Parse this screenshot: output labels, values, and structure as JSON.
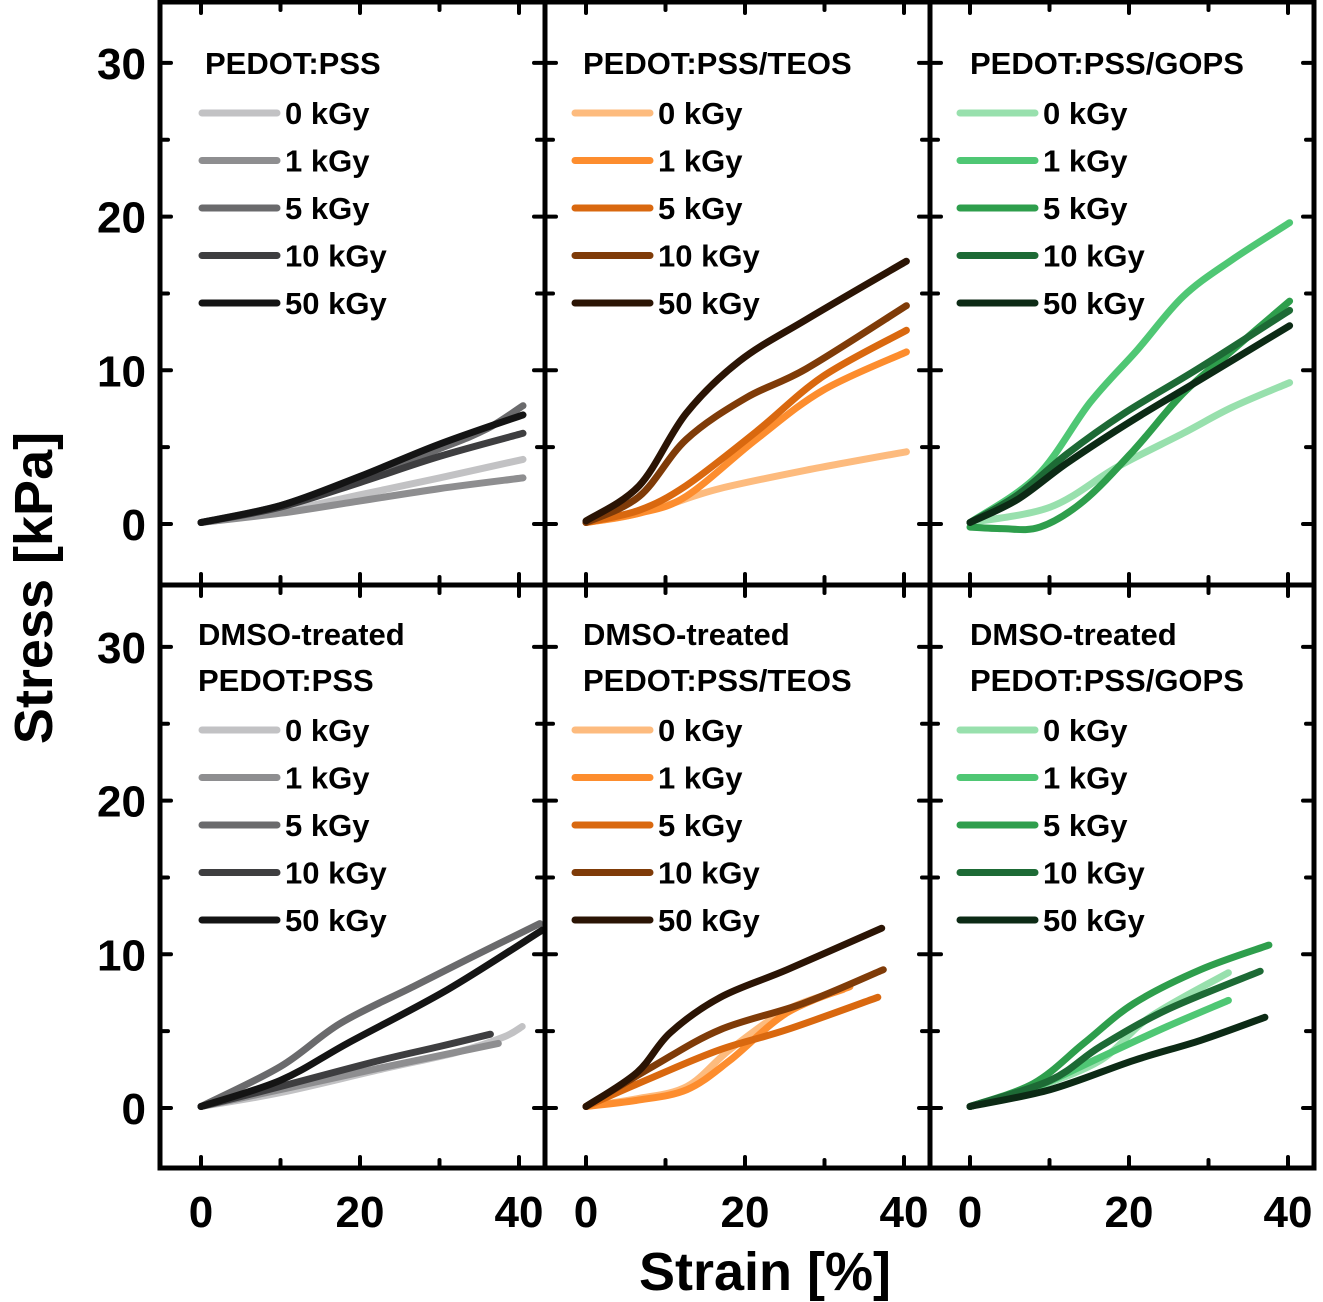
{
  "chart_data": {
    "type": "line",
    "layout": "2x3 grid of panels sharing axes",
    "xlabel": "Strain [%]",
    "ylabel": "Stress [kPa]",
    "xlim": [
      -5,
      42
    ],
    "ylim": [
      -4,
      34
    ],
    "x_ticks": [
      0,
      20,
      40
    ],
    "x_minor_ticks": [
      10,
      30
    ],
    "y_ticks": [
      0,
      10,
      20,
      30
    ],
    "y_minor_ticks": [
      5,
      15,
      25
    ],
    "x_tick_labels": [
      "0",
      "20",
      "40"
    ],
    "y_tick_labels": [
      "0",
      "10",
      "20",
      "30"
    ],
    "grid": false,
    "legend_placement": "top-left",
    "panels": [
      {
        "row": 0,
        "col": 0,
        "title_lines": [
          "PEDOT:PSS"
        ],
        "series": [
          {
            "name": "0 kGy",
            "color": "#c2c2c4",
            "x": [
              0,
              10,
              20,
              30,
              40.5
            ],
            "y": [
              0.1,
              0.8,
              1.9,
              3.0,
              4.2
            ]
          },
          {
            "name": "1 kGy",
            "color": "#8e8e90",
            "x": [
              0,
              10,
              20,
              30,
              40.5
            ],
            "y": [
              0.1,
              0.7,
              1.5,
              2.3,
              3.0
            ]
          },
          {
            "name": "5 kGy",
            "color": "#6a6a6c",
            "x": [
              0,
              10,
              20,
              30,
              36,
              40.5
            ],
            "y": [
              0.1,
              1.2,
              3.0,
              4.9,
              6.2,
              7.7
            ]
          },
          {
            "name": "10 kGy",
            "color": "#3e3e40",
            "x": [
              0,
              10,
              20,
              30,
              40.5
            ],
            "y": [
              0.1,
              1.1,
              2.7,
              4.4,
              5.9
            ]
          },
          {
            "name": "50 kGy",
            "color": "#141414",
            "x": [
              0,
              10,
              20,
              30,
              40.5
            ],
            "y": [
              0.1,
              1.2,
              3.1,
              5.2,
              7.1
            ]
          }
        ]
      },
      {
        "row": 0,
        "col": 1,
        "title_lines": [
          "PEDOT:PSS/TEOS"
        ],
        "series": [
          {
            "name": "0 kGy",
            "color": "#fdbb7e",
            "x": [
              0,
              5,
              10,
              16.8,
              27.7,
              40.3
            ],
            "y": [
              0.1,
              0.5,
              1.2,
              2.3,
              3.5,
              4.7
            ]
          },
          {
            "name": "1 kGy",
            "color": "#fd8d2e",
            "x": [
              0,
              6.7,
              12.6,
              21.4,
              29.8,
              40.3
            ],
            "y": [
              0.1,
              0.7,
              1.8,
              5.5,
              8.7,
              11.2
            ]
          },
          {
            "name": "5 kGy",
            "color": "#d9680f",
            "x": [
              0,
              6.7,
              12.6,
              21.4,
              29.8,
              40.3
            ],
            "y": [
              0.1,
              0.9,
              2.5,
              6.0,
              9.6,
              12.6
            ]
          },
          {
            "name": "10 kGy",
            "color": "#7f3b08",
            "x": [
              0,
              6.7,
              12.6,
              20.1,
              27.7,
              40.3
            ],
            "y": [
              0.1,
              1.8,
              5.5,
              8.2,
              10.1,
              14.2
            ]
          },
          {
            "name": "50 kGy",
            "color": "#2b1404",
            "x": [
              0,
              6.7,
              12.6,
              19.3,
              27.7,
              40.3
            ],
            "y": [
              0.2,
              2.5,
              7.2,
              10.6,
              13.3,
              17.1
            ]
          }
        ]
      },
      {
        "row": 0,
        "col": 2,
        "title_lines": [
          "PEDOT:PSS/GOPS"
        ],
        "series": [
          {
            "name": "0 kGy",
            "color": "#98e0ad",
            "x": [
              0,
              10.1,
              18.5,
              26.8,
              33,
              40.2
            ],
            "y": [
              0.1,
              1.1,
              3.7,
              5.9,
              7.6,
              9.2
            ]
          },
          {
            "name": "1 kGy",
            "color": "#4fc774",
            "x": [
              0,
              8.4,
              15.1,
              21,
              26.8,
              33,
              40.2
            ],
            "y": [
              0.1,
              3.1,
              7.9,
              11.3,
              14.8,
              17.2,
              19.6
            ]
          },
          {
            "name": "5 kGy",
            "color": "#2e9e4c",
            "x": [
              0,
              4,
              8.8,
              14.3,
              20.6,
              26.8,
              33,
              40.2
            ],
            "y": [
              -0.2,
              -0.3,
              -0.2,
              1.5,
              4.8,
              8.5,
              11.3,
              14.5
            ]
          },
          {
            "name": "10 kGy",
            "color": "#1d6a35",
            "x": [
              0,
              6,
              12.3,
              19.4,
              29,
              40.2
            ],
            "y": [
              0.1,
              1.9,
              4.6,
              7.2,
              10.2,
              13.9
            ]
          },
          {
            "name": "50 kGy",
            "color": "#0c2a15",
            "x": [
              0,
              6,
              12.3,
              20.6,
              29,
              40.2
            ],
            "y": [
              0.1,
              1.6,
              4.0,
              6.8,
              9.4,
              12.9
            ]
          }
        ]
      },
      {
        "row": 1,
        "col": 0,
        "title_lines": [
          "DMSO-treated",
          "PEDOT:PSS"
        ],
        "series": [
          {
            "name": "0 kGy",
            "color": "#c2c2c4",
            "x": [
              0,
              10,
              22.5,
              32,
              38,
              40.4
            ],
            "y": [
              0.1,
              1.0,
              2.5,
              3.6,
              4.6,
              5.3
            ]
          },
          {
            "name": "1 kGy",
            "color": "#8e8e90",
            "x": [
              0,
              10,
              22.5,
              30,
              37.4
            ],
            "y": [
              0.1,
              1.2,
              2.6,
              3.4,
              4.2
            ]
          },
          {
            "name": "5 kGy",
            "color": "#6a6a6c",
            "x": [
              0,
              10,
              17.5,
              26.7,
              34,
              42.6
            ],
            "y": [
              0.1,
              2.7,
              5.5,
              7.9,
              9.8,
              12.0
            ]
          },
          {
            "name": "10 kGy",
            "color": "#3e3e40",
            "x": [
              0,
              10,
              22.5,
              30,
              36.4
            ],
            "y": [
              0.1,
              1.4,
              3.1,
              4.0,
              4.8
            ]
          },
          {
            "name": "50 kGy",
            "color": "#141414",
            "x": [
              0,
              10,
              18.4,
              31,
              43
            ],
            "y": [
              0.1,
              1.8,
              4.2,
              7.7,
              11.6
            ]
          }
        ]
      },
      {
        "row": 1,
        "col": 1,
        "title_lines": [
          "DMSO-treated",
          "PEDOT:PSS/TEOS"
        ],
        "series": [
          {
            "name": "0 kGy",
            "color": "#fdbb7e",
            "x": [
              0,
              6.4,
              12.7,
              18.1,
              25.3,
              32.3
            ],
            "y": [
              0.1,
              0.6,
              1.4,
              3.8,
              6.4,
              7.7
            ]
          },
          {
            "name": "1 kGy",
            "color": "#fd8d2e",
            "x": [
              0,
              6.4,
              12.7,
              18.1,
              25.3,
              33.2
            ],
            "y": [
              0.1,
              0.5,
              1.2,
              3.1,
              6.2,
              7.9
            ]
          },
          {
            "name": "5 kGy",
            "color": "#d9680f",
            "x": [
              0,
              8.4,
              16.9,
              25.3,
              36.7
            ],
            "y": [
              0.1,
              2.0,
              3.8,
              5.1,
              7.2
            ]
          },
          {
            "name": "10 kGy",
            "color": "#7f3b08",
            "x": [
              0,
              8.4,
              16.9,
              27.3,
              37.4
            ],
            "y": [
              0.1,
              2.7,
              5.1,
              6.8,
              9.0
            ]
          },
          {
            "name": "50 kGy",
            "color": "#2b1404",
            "x": [
              0,
              6.4,
              10.6,
              16.9,
              25.3,
              37.2
            ],
            "y": [
              0.1,
              2.3,
              4.9,
              7.2,
              9.0,
              11.7
            ]
          }
        ]
      },
      {
        "row": 1,
        "col": 2,
        "title_lines": [
          "DMSO-treated",
          "PEDOT:PSS/GOPS"
        ],
        "series": [
          {
            "name": "0 kGy",
            "color": "#98e0ad",
            "x": [
              0,
              8,
              16.4,
              22.6,
              32.5
            ],
            "y": [
              0.1,
              1.3,
              3.1,
              5.9,
              8.8
            ]
          },
          {
            "name": "1 kGy",
            "color": "#4fc774",
            "x": [
              0,
              8,
              16.4,
              24.8,
              32.5
            ],
            "y": [
              0.1,
              1.3,
              3.3,
              5.3,
              7.0
            ]
          },
          {
            "name": "5 kGy",
            "color": "#2e9e4c",
            "x": [
              0,
              8,
              14.3,
              20.6,
              29,
              37.6
            ],
            "y": [
              0.1,
              1.6,
              4.2,
              6.8,
              9.0,
              10.6
            ]
          },
          {
            "name": "10 kGy",
            "color": "#1d6a35",
            "x": [
              0,
              10.1,
              16.4,
              24.8,
              36.5
            ],
            "y": [
              0.1,
              1.8,
              4.0,
              6.4,
              8.9
            ]
          },
          {
            "name": "50 kGy",
            "color": "#0c2a15",
            "x": [
              0,
              10.1,
              20.6,
              29,
              37.1
            ],
            "y": [
              0.1,
              1.2,
              3.1,
              4.4,
              5.9
            ]
          }
        ]
      }
    ]
  }
}
